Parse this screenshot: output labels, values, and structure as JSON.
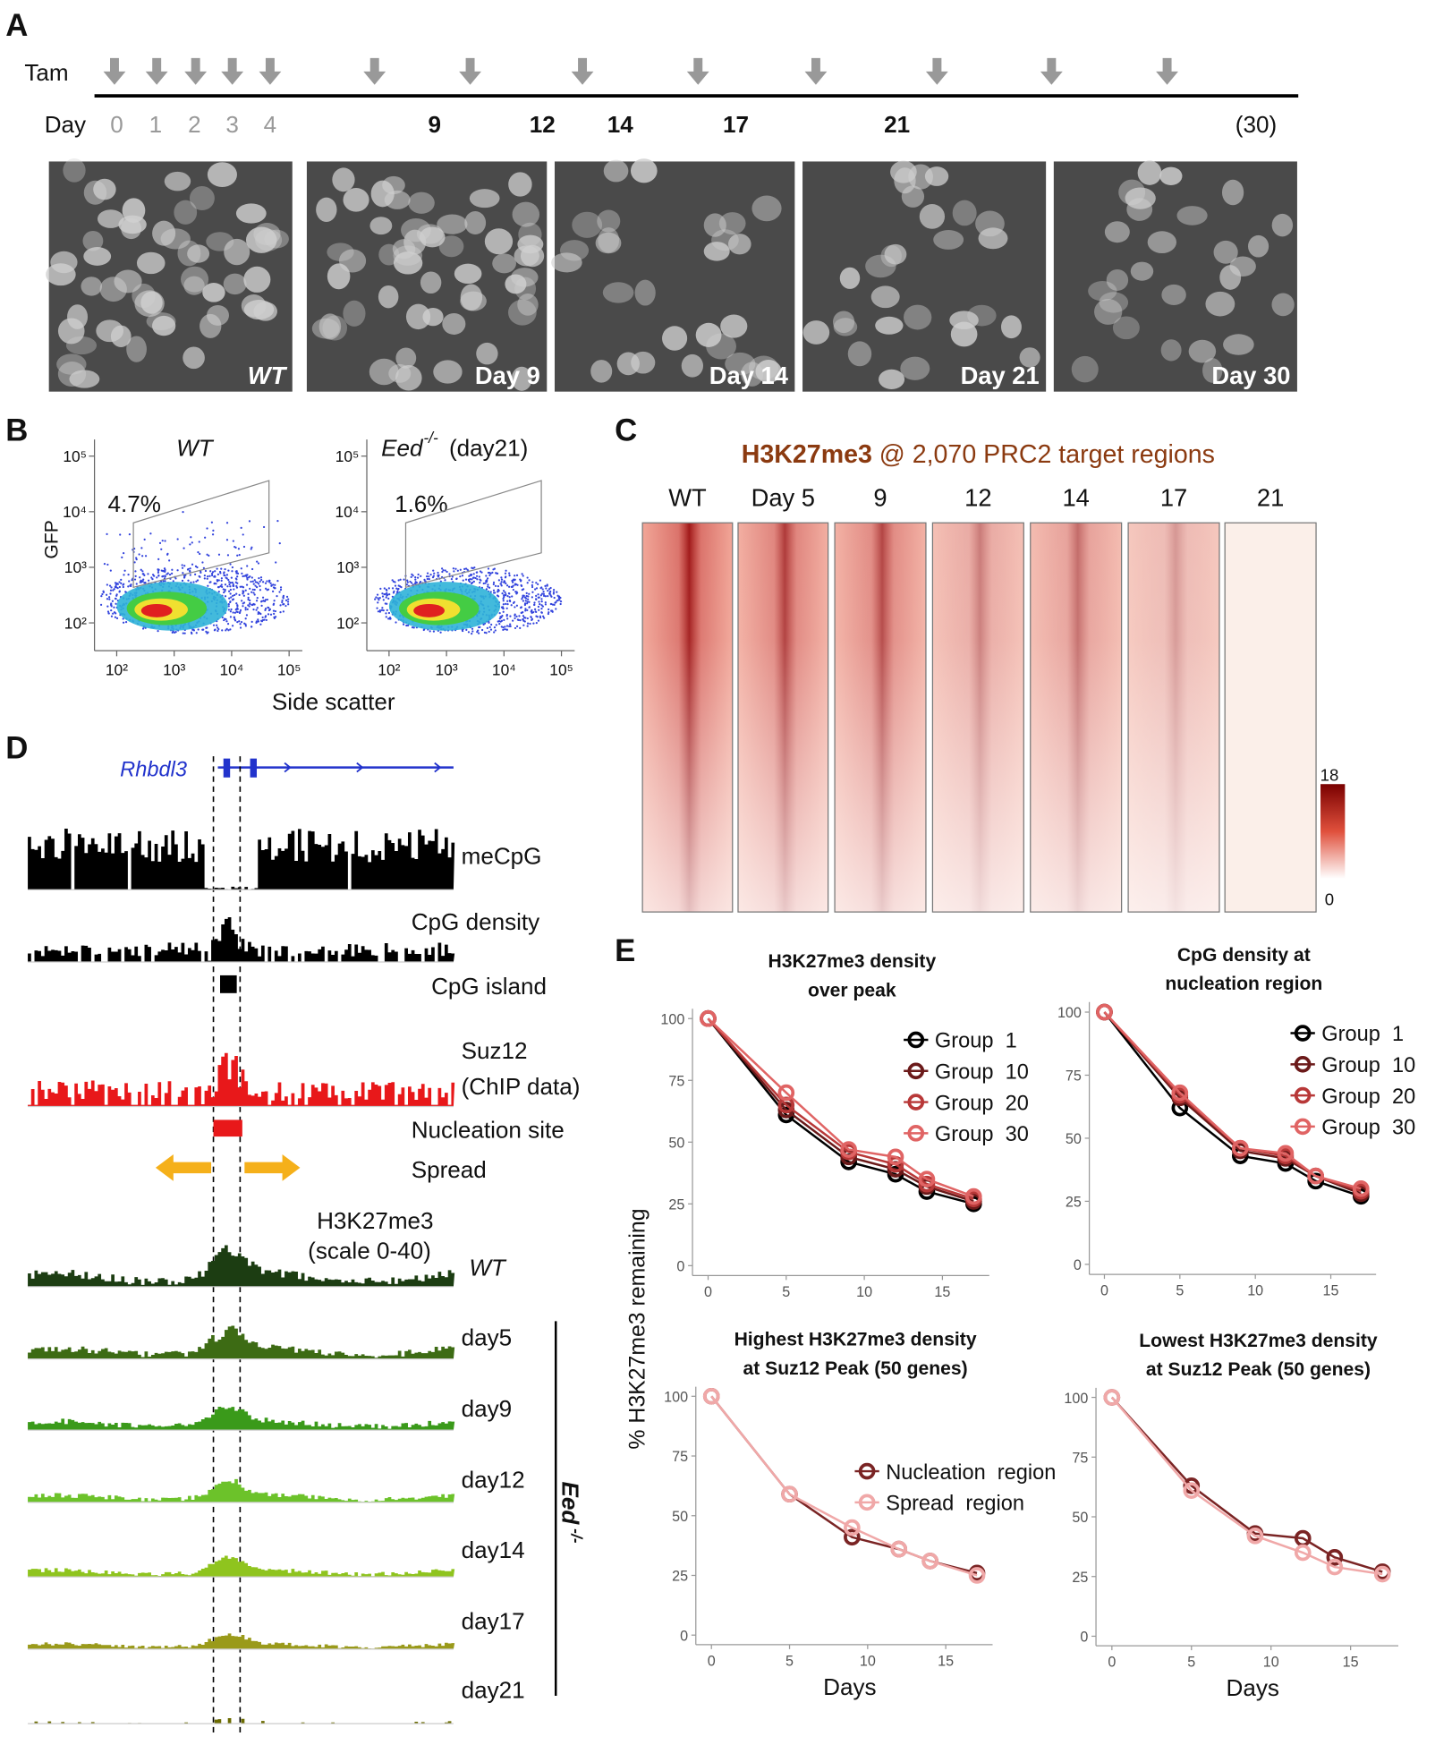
{
  "panels": {
    "A": {
      "letter": "A",
      "tam_label": "Tam",
      "day_label": "Day",
      "days": [
        "0",
        "1",
        "2",
        "3",
        "4",
        "9",
        "12",
        "14",
        "17",
        "21",
        "(30)"
      ],
      "images": [
        "WT",
        "Day 9",
        "Day 14",
        "Day 21",
        "Day 30"
      ]
    },
    "B": {
      "letter": "B",
      "plots": [
        {
          "title": "WT",
          "gate_percent": "4.7%"
        },
        {
          "title_gene": "Eed",
          "title_sup": "-/-",
          "title_rest": "(day21)",
          "gate_percent": "1.6%"
        }
      ],
      "y_label": "GFP",
      "x_label": "Side scatter",
      "log_scale": true,
      "ticks": [
        {
          "value": 100,
          "label": "10²"
        },
        {
          "value": 1000,
          "label": "10³"
        },
        {
          "value": 10000,
          "label": "10⁴"
        },
        {
          "value": 100000,
          "label": "10⁵"
        }
      ]
    },
    "C": {
      "letter": "C",
      "title_bold": "H3K27me3",
      "title_rest": "@ 2,070 PRC2 target regions",
      "columns": [
        "WT",
        "Day 5",
        "9",
        "12",
        "14",
        "17",
        "21"
      ],
      "colorbar_ticks": [
        18,
        0
      ]
    },
    "D": {
      "letter": "D",
      "gene": "Rhbdl3",
      "tracks": [
        "meCpG",
        "CpG density",
        "CpG island",
        "Suz12",
        "(ChIP data)",
        "Nucleation site",
        "Spread",
        "H3K27me3",
        "(scale 0-40)"
      ],
      "samples": [
        "WT",
        "day5",
        "day9",
        "day12",
        "day14",
        "day17",
        "day21"
      ],
      "group_gene": "Eed",
      "group_sup": " -/-"
    },
    "E": {
      "letter": "E",
      "y_label": "% H3K27me3 remaining"
    }
  },
  "chart_data": [
    {
      "type": "line",
      "title": [
        "H3K27me3 density",
        "over peak"
      ],
      "x": [
        0,
        5,
        9,
        12,
        14,
        17
      ],
      "xlim": [
        -1,
        18
      ],
      "ylim": [
        -4,
        104
      ],
      "xticks": [
        0,
        5,
        10,
        15
      ],
      "yticks": [
        0,
        25,
        50,
        75,
        100
      ],
      "legend": "top-right",
      "series": [
        {
          "name": "Group  1",
          "color": "#000000",
          "values": [
            100,
            61,
            42,
            37,
            30,
            25
          ]
        },
        {
          "name": "Group  10",
          "color": "#6b1a1a",
          "values": [
            100,
            63,
            44,
            39,
            32,
            26
          ]
        },
        {
          "name": "Group  20",
          "color": "#b83838",
          "values": [
            100,
            65,
            46,
            41,
            33,
            27
          ]
        },
        {
          "name": "Group  30",
          "color": "#e06464",
          "values": [
            100,
            70,
            47,
            44,
            35,
            28
          ]
        }
      ]
    },
    {
      "type": "line",
      "title": [
        "CpG density at",
        "nucleation region"
      ],
      "x": [
        0,
        5,
        9,
        12,
        14,
        17
      ],
      "xlim": [
        -1,
        18
      ],
      "ylim": [
        -4,
        104
      ],
      "xticks": [
        0,
        5,
        10,
        15
      ],
      "yticks": [
        0,
        25,
        50,
        75,
        100
      ],
      "legend": "top-right",
      "series": [
        {
          "name": "Group  1",
          "color": "#000000",
          "values": [
            100,
            62,
            43,
            40,
            33,
            27
          ]
        },
        {
          "name": "Group  10",
          "color": "#6b1a1a",
          "values": [
            100,
            66,
            45,
            42,
            35,
            28
          ]
        },
        {
          "name": "Group  20",
          "color": "#b83838",
          "values": [
            100,
            67,
            46,
            43,
            35,
            29
          ]
        },
        {
          "name": "Group  30",
          "color": "#e06464",
          "values": [
            100,
            68,
            46,
            44,
            35,
            30
          ]
        }
      ]
    },
    {
      "type": "line",
      "title": [
        "Highest H3K27me3 density",
        "at Suz12 Peak (50 genes)"
      ],
      "xlabel": "Days",
      "x": [
        0,
        5,
        9,
        12,
        14,
        17
      ],
      "xlim": [
        -1,
        18
      ],
      "ylim": [
        -4,
        104
      ],
      "xticks": [
        0,
        5,
        10,
        15
      ],
      "yticks": [
        0,
        25,
        50,
        75,
        100
      ],
      "legend": "center-right",
      "series": [
        {
          "name": "Nucleation  region",
          "color": "#7a2424",
          "values": [
            100,
            59,
            41,
            36,
            31,
            26
          ]
        },
        {
          "name": "Spread  region",
          "color": "#f0a8a8",
          "values": [
            100,
            59,
            45,
            36,
            31,
            25
          ]
        }
      ]
    },
    {
      "type": "line",
      "title": [
        "Lowest H3K27me3 density",
        "at Suz12 Peak (50 genes)"
      ],
      "xlabel": "Days",
      "x": [
        0,
        5,
        9,
        12,
        14,
        17
      ],
      "xlim": [
        -1,
        18
      ],
      "ylim": [
        -4,
        104
      ],
      "xticks": [
        0,
        5,
        10,
        15
      ],
      "yticks": [
        0,
        25,
        50,
        75,
        100
      ],
      "series": [
        {
          "color": "#7a2424",
          "values": [
            100,
            63,
            43,
            41,
            33,
            27
          ]
        },
        {
          "color": "#f0a8a8",
          "values": [
            100,
            61,
            42,
            35,
            29,
            26
          ]
        }
      ]
    }
  ]
}
